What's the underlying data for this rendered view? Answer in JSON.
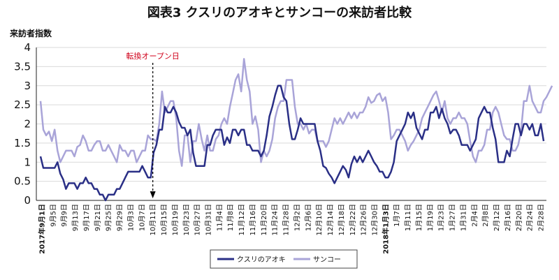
{
  "chart_data": {
    "type": "line",
    "title": "図表3 クスリのアオキとサンコーの来訪者比較",
    "ylabel": "来訪者指数",
    "xlabel": "",
    "ylim": [
      0,
      4
    ],
    "yticks": [
      "0",
      "0.5",
      "1",
      "1.5",
      "2",
      "2.5",
      "3",
      "3.5",
      "4"
    ],
    "grid": "horizontal",
    "legend": "bottom-center",
    "x_tick_labels": [
      "2017年9月1日",
      "9月5日",
      "9月9日",
      "9月13日",
      "9月17日",
      "9月21日",
      "9月25日",
      "9月29日",
      "10月3日",
      "10月7日",
      "10月11日",
      "10月15日",
      "10月19日",
      "10月23日",
      "10月27日",
      "10月31日",
      "11月4日",
      "11月8日",
      "11月12日",
      "11月16日",
      "11月20日",
      "11月24日",
      "11月28日",
      "12月2日",
      "12月6日",
      "12月10日",
      "12月14日",
      "12月18日",
      "12月22日",
      "12月26日",
      "12月30日",
      "2018年1月3日",
      "1月7日",
      "1月11日",
      "1月15日",
      "1月19日",
      "1月23日",
      "1月27日",
      "1月31日",
      "2月4日",
      "2月8日",
      "2月12日",
      "2月16日",
      "2月20日",
      "2月24日",
      "2月28日"
    ],
    "bold_tick_labels": [
      "2017年9月1日",
      "2018年1月3日"
    ],
    "annotation": {
      "text": "転換オープン日",
      "x_label": "10月11日",
      "color": "#d0021b"
    },
    "series": [
      {
        "name": "クスリのアオキ",
        "color": "#2a2f86",
        "values": [
          1.15,
          0.85,
          0.85,
          0.85,
          0.85,
          0.85,
          1.0,
          0.7,
          0.55,
          0.3,
          0.45,
          0.45,
          0.45,
          0.3,
          0.45,
          0.45,
          0.6,
          0.45,
          0.45,
          0.3,
          0.3,
          0.15,
          0.15,
          0.0,
          0.15,
          0.15,
          0.15,
          0.3,
          0.3,
          0.45,
          0.6,
          0.75,
          0.75,
          0.75,
          0.75,
          0.75,
          0.9,
          0.75,
          0.6,
          0.6,
          1.25,
          1.45,
          1.85,
          1.85,
          2.45,
          2.3,
          2.3,
          2.45,
          2.3,
          2.05,
          1.9,
          1.9,
          1.7,
          1.85,
          1.25,
          0.9,
          0.9,
          0.9,
          0.9,
          1.45,
          1.45,
          1.7,
          1.85,
          1.85,
          1.85,
          1.45,
          1.65,
          1.5,
          1.85,
          1.85,
          1.7,
          1.85,
          1.85,
          1.45,
          1.45,
          1.3,
          1.3,
          1.3,
          1.15,
          1.3,
          1.7,
          2.2,
          2.45,
          2.75,
          3.0,
          3.0,
          2.7,
          2.6,
          2.0,
          1.6,
          1.6,
          1.85,
          2.15,
          2.0,
          2.0,
          2.0,
          2.0,
          2.0,
          1.55,
          1.3,
          0.9,
          0.85,
          0.7,
          0.6,
          0.45,
          0.6,
          0.75,
          0.9,
          0.8,
          0.6,
          0.95,
          1.15,
          1.0,
          1.15,
          1.0,
          1.15,
          1.3,
          1.15,
          1.0,
          0.9,
          0.75,
          0.75,
          0.6,
          0.6,
          0.75,
          1.0,
          1.55,
          1.7,
          1.85,
          2.0,
          2.3,
          2.15,
          2.3,
          1.9,
          1.75,
          1.6,
          1.85,
          1.85,
          2.3,
          2.3,
          2.45,
          2.15,
          2.4,
          2.15,
          2.0,
          1.75,
          1.85,
          1.85,
          1.7,
          1.45,
          1.45,
          1.45,
          1.3,
          1.45,
          1.6,
          2.15,
          2.3,
          2.45,
          2.3,
          2.3,
          1.9,
          1.6,
          1.0,
          1.0,
          1.0,
          1.3,
          1.15,
          1.6,
          2.0,
          2.0,
          1.7,
          2.0,
          2.0,
          1.85,
          2.0,
          1.7,
          1.7,
          2.0,
          1.55
        ]
      },
      {
        "name": "サンコー",
        "color": "#a9a4d8",
        "values": [
          2.6,
          1.85,
          1.7,
          1.8,
          1.55,
          1.85,
          1.3,
          1.0,
          1.15,
          1.3,
          1.3,
          1.3,
          1.15,
          1.4,
          1.45,
          1.7,
          1.55,
          1.3,
          1.3,
          1.45,
          1.55,
          1.55,
          1.3,
          1.3,
          1.45,
          1.3,
          1.15,
          1.0,
          1.45,
          1.3,
          1.3,
          1.15,
          1.3,
          1.3,
          1.0,
          1.15,
          1.3,
          1.3,
          1.7,
          1.6,
          1.6,
          1.55,
          2.0,
          2.85,
          2.3,
          2.45,
          2.6,
          2.6,
          2.15,
          1.3,
          0.9,
          1.7,
          1.7,
          1.0,
          1.55,
          1.55,
          2.0,
          1.6,
          1.3,
          1.7,
          1.3,
          1.3,
          1.6,
          1.7,
          2.0,
          2.15,
          2.0,
          2.45,
          2.8,
          3.15,
          3.3,
          2.85,
          3.7,
          3.15,
          2.85,
          2.0,
          2.2,
          1.85,
          1.0,
          1.3,
          1.15,
          1.3,
          1.6,
          2.15,
          2.45,
          2.6,
          2.6,
          3.15,
          3.15,
          3.15,
          2.45,
          2.0,
          2.0,
          1.85,
          2.0,
          1.75,
          1.85,
          1.85,
          1.55,
          1.55,
          1.55,
          1.4,
          1.55,
          1.85,
          2.15,
          2.0,
          2.15,
          2.0,
          2.15,
          2.3,
          2.15,
          2.3,
          2.15,
          2.3,
          2.3,
          2.45,
          2.7,
          2.55,
          2.6,
          2.75,
          2.8,
          2.6,
          2.7,
          2.3,
          1.6,
          1.7,
          1.85,
          1.85,
          1.7,
          1.55,
          1.3,
          1.45,
          1.55,
          1.7,
          1.85,
          2.15,
          2.3,
          2.45,
          2.6,
          2.75,
          2.85,
          2.6,
          2.3,
          2.6,
          2.15,
          2.0,
          2.15,
          2.15,
          2.3,
          2.15,
          2.15,
          2.0,
          1.55,
          1.15,
          1.0,
          1.3,
          1.3,
          1.45,
          1.85,
          1.85,
          2.3,
          2.45,
          2.3,
          2.0,
          1.7,
          1.6,
          1.6,
          1.3,
          1.3,
          1.45,
          1.8,
          2.6,
          2.6,
          3.0,
          2.6,
          2.45,
          2.3,
          2.3,
          2.6,
          2.7,
          2.85,
          3.0
        ]
      }
    ]
  }
}
